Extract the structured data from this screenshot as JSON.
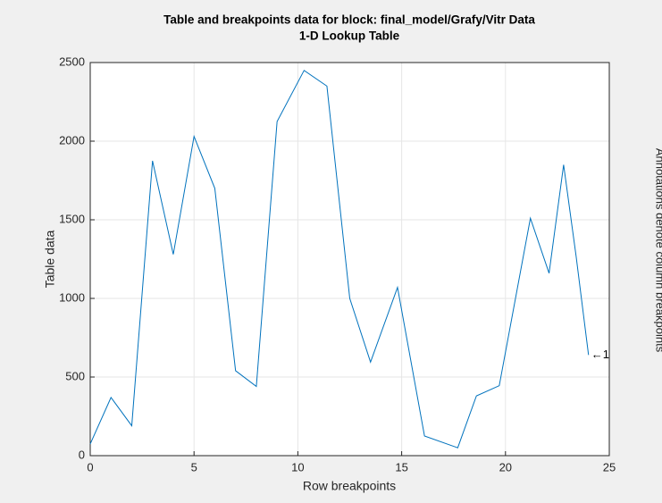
{
  "chart_data": {
    "type": "line",
    "title": "Table and breakpoints data for block: final_model/Grafy/Vitr Data",
    "subtitle": "1-D Lookup Table",
    "xlabel": "Row breakpoints",
    "ylabel": "Table data",
    "side_label": "Annotations denote column breakpoints",
    "annotation": "←1",
    "x": [
      0,
      1,
      2,
      3,
      4,
      5,
      6,
      7,
      8,
      9,
      10.3,
      11.4,
      12.5,
      13.5,
      14.8,
      16.1,
      17.7,
      18.6,
      19.7,
      21.2,
      22.1,
      22.8,
      23.4,
      24
    ],
    "series": [
      {
        "name": "1",
        "color": "#0072bd",
        "values": [
          74,
          370,
          190,
          1875,
          1280,
          2030,
          1700,
          540,
          440,
          2125,
          2450,
          2350,
          1000,
          595,
          1070,
          125,
          50,
          380,
          445,
          1510,
          1160,
          1850,
          1270,
          640
        ]
      }
    ],
    "xlim": [
      0,
      25
    ],
    "xticks": [
      0,
      5,
      10,
      15,
      20,
      25
    ],
    "ylim": [
      0,
      2500
    ],
    "yticks": [
      0,
      500,
      1000,
      1500,
      2000,
      2500
    ],
    "grid": true
  }
}
